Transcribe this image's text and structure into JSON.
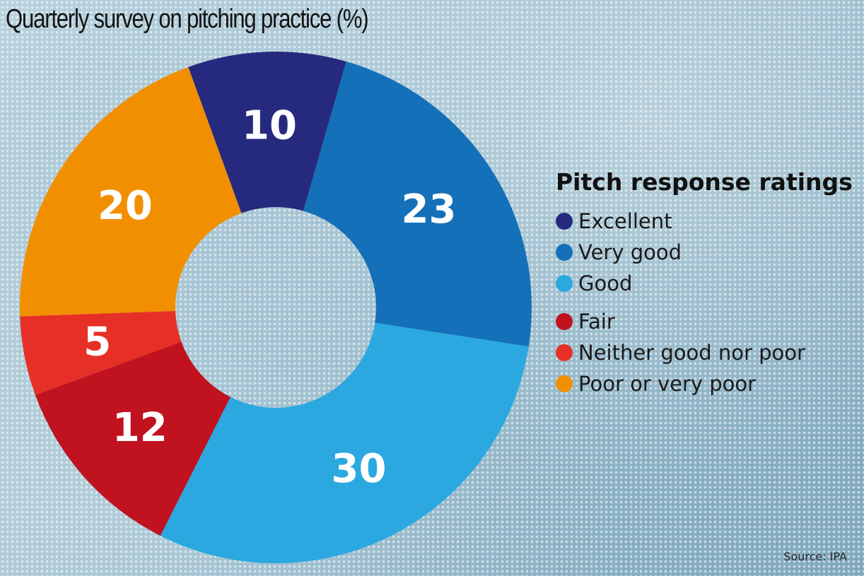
{
  "chart_data": {
    "type": "pie",
    "title": "Quarterly survey on pitching practice (%)",
    "legend_title": "Pitch response ratings",
    "legend_position": "right",
    "source": "Source: IPA",
    "slices": [
      {
        "label": "Excellent",
        "value": 10,
        "color": "#262a7f"
      },
      {
        "label": "Very good",
        "value": 23,
        "color": "#1470b8"
      },
      {
        "label": "Good",
        "value": 30,
        "color": "#2ba8e0"
      },
      {
        "label": "Fair",
        "value": 12,
        "color": "#c0121f"
      },
      {
        "label": "Neither good nor poor",
        "value": 5,
        "color": "#e63027"
      },
      {
        "label": "Poor or very poor",
        "value": 20,
        "color": "#f28f00"
      }
    ]
  }
}
